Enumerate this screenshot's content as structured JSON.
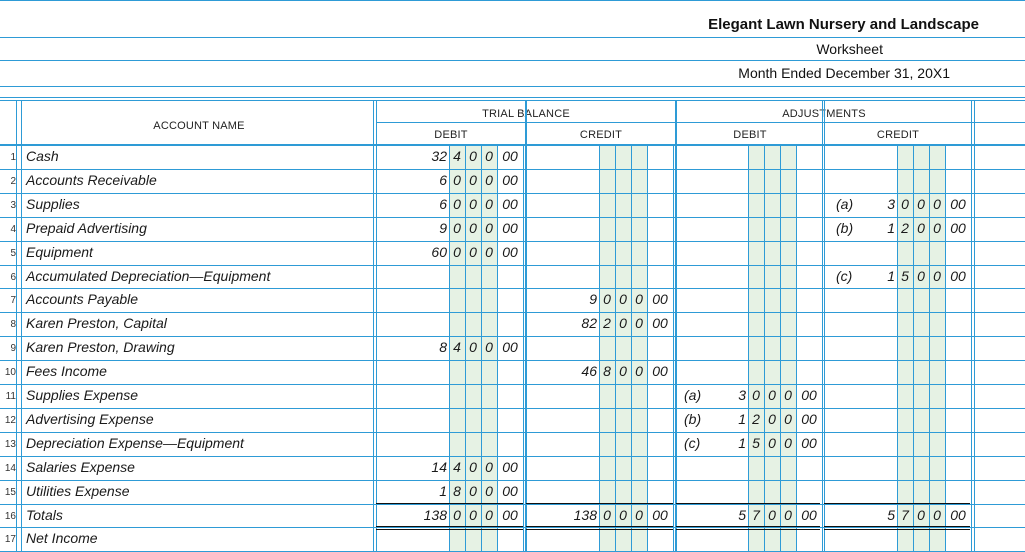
{
  "header": {
    "company": "Elegant Lawn Nursery and Landscape",
    "report": "Worksheet",
    "period": "Month Ended December 31, 20X1"
  },
  "columns": {
    "account_name": "ACCOUNT NAME",
    "trial_balance": "TRIAL BALANCE",
    "adjustments": "ADJUSTMENTS",
    "tb_debit": "DEBIT",
    "tb_credit": "CREDIT",
    "adj_debit": "DEBIT",
    "adj_credit": "CREDIT"
  },
  "rows": [
    {
      "num": "1",
      "account": "Cash",
      "tb_debit": {
        "lead": "32",
        "d": [
          "4",
          "0",
          "0"
        ],
        "c": "00"
      }
    },
    {
      "num": "2",
      "account": "Accounts Receivable",
      "tb_debit": {
        "lead": "6",
        "d": [
          "0",
          "0",
          "0"
        ],
        "c": "00"
      }
    },
    {
      "num": "3",
      "account": "Supplies",
      "tb_debit": {
        "lead": "6",
        "d": [
          "0",
          "0",
          "0"
        ],
        "c": "00"
      },
      "adj_credit": {
        "ref": "(a)",
        "lead": "3",
        "d": [
          "0",
          "0",
          "0"
        ],
        "c": "00"
      }
    },
    {
      "num": "4",
      "account": "Prepaid Advertising",
      "tb_debit": {
        "lead": "9",
        "d": [
          "0",
          "0",
          "0"
        ],
        "c": "00"
      },
      "adj_credit": {
        "ref": "(b)",
        "lead": "1",
        "d": [
          "2",
          "0",
          "0"
        ],
        "c": "00"
      }
    },
    {
      "num": "5",
      "account": "Equipment",
      "tb_debit": {
        "lead": "60",
        "d": [
          "0",
          "0",
          "0"
        ],
        "c": "00"
      }
    },
    {
      "num": "6",
      "account": "Accumulated Depreciation—Equipment",
      "adj_credit": {
        "ref": "(c)",
        "lead": "1",
        "d": [
          "5",
          "0",
          "0"
        ],
        "c": "00"
      }
    },
    {
      "num": "7",
      "account": "Accounts Payable",
      "tb_credit": {
        "lead": "9",
        "d": [
          "0",
          "0",
          "0"
        ],
        "c": "00"
      }
    },
    {
      "num": "8",
      "account": "Karen Preston, Capital",
      "tb_credit": {
        "lead": "82",
        "d": [
          "2",
          "0",
          "0"
        ],
        "c": "00"
      }
    },
    {
      "num": "9",
      "account": "Karen Preston, Drawing",
      "tb_debit": {
        "lead": "8",
        "d": [
          "4",
          "0",
          "0"
        ],
        "c": "00"
      }
    },
    {
      "num": "10",
      "account": "Fees Income",
      "tb_credit": {
        "lead": "46",
        "d": [
          "8",
          "0",
          "0"
        ],
        "c": "00"
      }
    },
    {
      "num": "11",
      "account": "Supplies Expense",
      "adj_debit": {
        "ref": "(a)",
        "lead": "3",
        "d": [
          "0",
          "0",
          "0"
        ],
        "c": "00"
      }
    },
    {
      "num": "12",
      "account": "Advertising Expense",
      "adj_debit": {
        "ref": "(b)",
        "lead": "1",
        "d": [
          "2",
          "0",
          "0"
        ],
        "c": "00"
      }
    },
    {
      "num": "13",
      "account": "Depreciation Expense—Equipment",
      "adj_debit": {
        "ref": "(c)",
        "lead": "1",
        "d": [
          "5",
          "0",
          "0"
        ],
        "c": "00"
      }
    },
    {
      "num": "14",
      "account": "Salaries Expense",
      "tb_debit": {
        "lead": "14",
        "d": [
          "4",
          "0",
          "0"
        ],
        "c": "00"
      }
    },
    {
      "num": "15",
      "account": "Utilities Expense",
      "tb_debit": {
        "lead": "1",
        "d": [
          "8",
          "0",
          "0"
        ],
        "c": "00"
      }
    },
    {
      "num": "16",
      "account": "Totals",
      "tb_debit": {
        "lead": "138",
        "d": [
          "0",
          "0",
          "0"
        ],
        "c": "00"
      },
      "tb_credit": {
        "lead": "138",
        "d": [
          "0",
          "0",
          "0"
        ],
        "c": "00"
      },
      "adj_debit": {
        "lead": "5",
        "d": [
          "7",
          "0",
          "0"
        ],
        "c": "00"
      },
      "adj_credit": {
        "lead": "5",
        "d": [
          "7",
          "0",
          "0"
        ],
        "c": "00"
      }
    },
    {
      "num": "17",
      "account": "Net Income"
    }
  ],
  "colors": {
    "rule": "#2e9bd6",
    "shade": "#e6f2e4",
    "text": "#1a1a1a"
  }
}
